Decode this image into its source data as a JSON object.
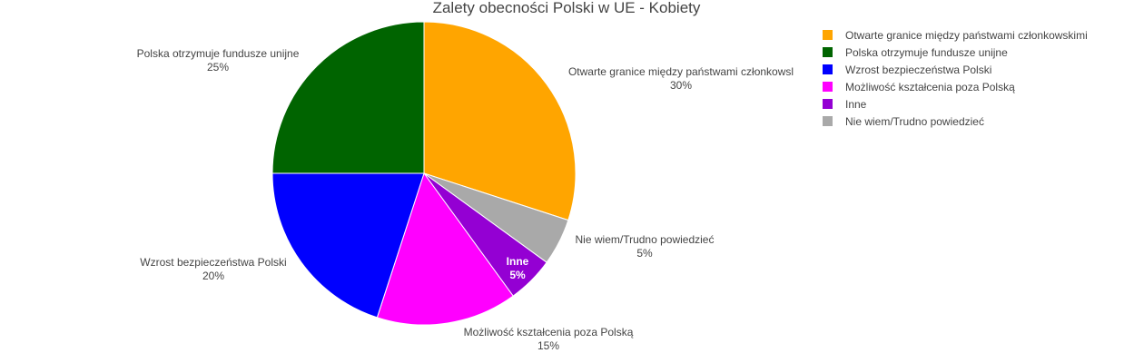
{
  "chart_data": {
    "type": "pie",
    "title": "Zalety obecności Polski w UE - Kobiety",
    "slices": [
      {
        "label": "Otwarte granice między państwami członkowskimi",
        "display_label": "Otwarte granice między państwami członkowsl",
        "value": 30,
        "percent_text": "30%",
        "color": "#FFA500"
      },
      {
        "label": "Nie wiem/Trudno powiedzieć",
        "display_label": "Nie wiem/Trudno powiedzieć",
        "value": 5,
        "percent_text": "5%",
        "color": "#A9A9A9"
      },
      {
        "label": "Inne",
        "display_label": "Inne",
        "value": 5,
        "percent_text": "5%",
        "color": "#9400D3"
      },
      {
        "label": "Możliwość kształcenia poza Polską",
        "display_label": "Możliwość kształcenia poza Polską",
        "value": 15,
        "percent_text": "15%",
        "color": "#FF00FF"
      },
      {
        "label": "Wzrost bezpieczeństwa Polski",
        "display_label": "Wzrost bezpieczeństwa Polski",
        "value": 20,
        "percent_text": "20%",
        "color": "#0000FF"
      },
      {
        "label": "Polska otrzymuje fundusze unijne",
        "display_label": "Polska otrzymuje fundusze unijne",
        "value": 25,
        "percent_text": "25%",
        "color": "#006400"
      }
    ],
    "legend": {
      "position": "top-right",
      "items": [
        {
          "label": "Otwarte granice między państwami członkowskimi",
          "color": "#FFA500"
        },
        {
          "label": "Polska otrzymuje fundusze unijne",
          "color": "#006400"
        },
        {
          "label": "Wzrost bezpieczeństwa Polski",
          "color": "#0000FF"
        },
        {
          "label": "Możliwość kształcenia poza Polską",
          "color": "#FF00FF"
        },
        {
          "label": "Inne",
          "color": "#9400D3"
        },
        {
          "label": "Nie wiem/Trudno powiedzieć",
          "color": "#A9A9A9"
        }
      ]
    }
  }
}
